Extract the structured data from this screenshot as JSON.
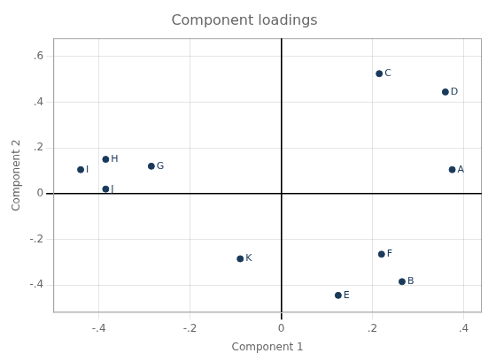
{
  "chart_data": {
    "type": "scatter",
    "title": "Component loadings",
    "xlabel": "Component 1",
    "ylabel": "Component 2",
    "xlim": [
      -0.5,
      0.44
    ],
    "ylim": [
      -0.52,
      0.68
    ],
    "xticks": [
      {
        "value": -0.4,
        "label": "-.4"
      },
      {
        "value": -0.2,
        "label": "-.2"
      },
      0,
      {
        "value": 0.2,
        "label": ".2"
      },
      {
        "value": 0.4,
        "label": ".4"
      }
    ],
    "yticks": [
      {
        "value": -0.4,
        "label": "-.4"
      },
      {
        "value": -0.2,
        "label": "-.2"
      },
      0,
      {
        "value": 0.2,
        "label": ".2"
      },
      {
        "value": 0.4,
        "label": ".4"
      },
      {
        "value": 0.6,
        "label": ".6"
      }
    ],
    "x": [
      0.375,
      0.265,
      0.215,
      0.36,
      0.125,
      0.22,
      -0.285,
      -0.385,
      -0.44,
      -0.385,
      -0.09
    ],
    "values": [
      0.105,
      -0.385,
      0.525,
      0.445,
      -0.445,
      -0.265,
      0.12,
      0.15,
      0.105,
      0.02,
      -0.285
    ],
    "labels": [
      "A",
      "B",
      "C",
      "D",
      "E",
      "F",
      "G",
      "H",
      "I",
      "J",
      "K"
    ],
    "color": "#1a3a5c",
    "grid": true
  }
}
